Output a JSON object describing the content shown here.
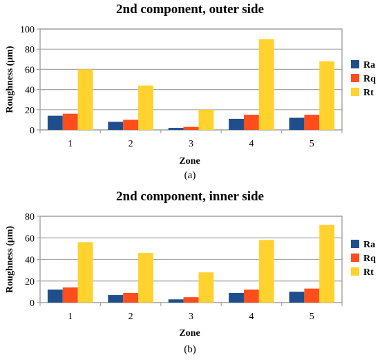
{
  "figure": {
    "captions": [
      "(a)",
      "(b)"
    ]
  },
  "chart_data": [
    {
      "type": "bar",
      "title": "2nd component, outer side",
      "xlabel": "Zone",
      "ylabel": "Roughness (µm)",
      "categories": [
        "1",
        "2",
        "3",
        "4",
        "5"
      ],
      "ylim": [
        0,
        100
      ],
      "yticks": [
        0,
        20,
        40,
        60,
        80,
        100
      ],
      "grid": true,
      "legend_position": "right",
      "series": [
        {
          "name": "Ra",
          "color": "#1f4e8c",
          "values": [
            14,
            8,
            2,
            11,
            12
          ]
        },
        {
          "name": "Rq",
          "color": "#ff4d1c",
          "values": [
            16,
            10,
            3,
            15,
            15
          ]
        },
        {
          "name": "Rt",
          "color": "#ffd22e",
          "values": [
            60,
            44,
            20,
            90,
            68
          ]
        }
      ]
    },
    {
      "type": "bar",
      "title": "2nd component, inner side",
      "xlabel": "Zone",
      "ylabel": "Roughness (µm)",
      "categories": [
        "1",
        "2",
        "3",
        "4",
        "5"
      ],
      "ylim": [
        0,
        80
      ],
      "yticks": [
        0,
        20,
        40,
        60,
        80
      ],
      "grid": true,
      "legend_position": "right",
      "series": [
        {
          "name": "Ra",
          "color": "#1f4e8c",
          "values": [
            12,
            7,
            3,
            9,
            10
          ]
        },
        {
          "name": "Rq",
          "color": "#ff4d1c",
          "values": [
            14,
            9,
            5,
            12,
            13
          ]
        },
        {
          "name": "Rt",
          "color": "#ffd22e",
          "values": [
            56,
            46,
            28,
            58,
            72
          ]
        }
      ]
    }
  ]
}
